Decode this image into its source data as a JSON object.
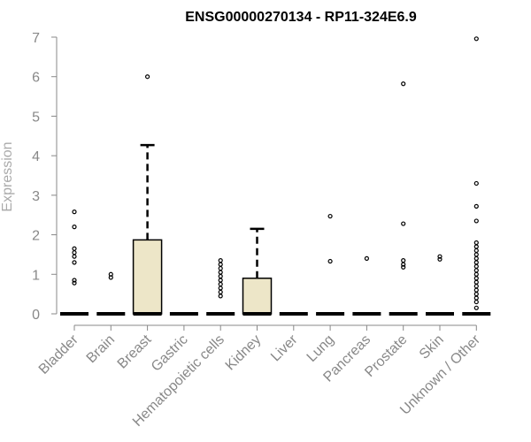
{
  "chart_data": {
    "type": "box",
    "title": "ENSG00000270134 - RP11-324E6.9",
    "xlabel": "",
    "ylabel": "Expression",
    "ylim": [
      0,
      7
    ],
    "yticks": [
      0,
      1,
      2,
      3,
      4,
      5,
      6,
      7
    ],
    "grid": false,
    "colors": {
      "box_fill": "#ede6c8",
      "stroke": "#000000",
      "axis": "#888888",
      "tick_text": "#888888"
    },
    "categories": [
      "Bladder",
      "Brain",
      "Breast",
      "Gastric",
      "Hematopoietic cells",
      "Kidney",
      "Liver",
      "Lung",
      "Pancreas",
      "Prostate",
      "Skin",
      "Unknown / Other"
    ],
    "boxes": [
      {
        "category": "Bladder",
        "q1": 0,
        "median": 0,
        "q3": 0,
        "whisker_low": 0,
        "whisker_high": 0,
        "outliers": [
          0.78,
          0.85,
          1.3,
          1.45,
          1.55,
          1.65,
          2.2,
          2.58
        ]
      },
      {
        "category": "Brain",
        "q1": 0,
        "median": 0,
        "q3": 0,
        "whisker_low": 0,
        "whisker_high": 0,
        "outliers": [
          0.92,
          1.0
        ]
      },
      {
        "category": "Breast",
        "q1": 0,
        "median": 0,
        "q3": 1.87,
        "whisker_low": 0,
        "whisker_high": 4.27,
        "outliers": [
          6.0
        ]
      },
      {
        "category": "Gastric",
        "q1": 0,
        "median": 0,
        "q3": 0,
        "whisker_low": 0,
        "whisker_high": 0,
        "outliers": []
      },
      {
        "category": "Hematopoietic cells",
        "q1": 0,
        "median": 0,
        "q3": 0,
        "whisker_low": 0,
        "whisker_high": 0,
        "outliers": [
          0.45,
          0.55,
          0.65,
          0.75,
          0.85,
          0.95,
          1.05,
          1.15,
          1.25,
          1.35
        ]
      },
      {
        "category": "Kidney",
        "q1": 0,
        "median": 0,
        "q3": 0.9,
        "whisker_low": 0,
        "whisker_high": 2.15,
        "outliers": []
      },
      {
        "category": "Liver",
        "q1": 0,
        "median": 0,
        "q3": 0,
        "whisker_low": 0,
        "whisker_high": 0,
        "outliers": []
      },
      {
        "category": "Lung",
        "q1": 0,
        "median": 0,
        "q3": 0,
        "whisker_low": 0,
        "whisker_high": 0,
        "outliers": [
          1.33,
          2.47
        ]
      },
      {
        "category": "Pancreas",
        "q1": 0,
        "median": 0,
        "q3": 0,
        "whisker_low": 0,
        "whisker_high": 0,
        "outliers": [
          1.4
        ]
      },
      {
        "category": "Prostate",
        "q1": 0,
        "median": 0,
        "q3": 0,
        "whisker_low": 0,
        "whisker_high": 0,
        "outliers": [
          1.18,
          1.25,
          1.35,
          2.28,
          5.82
        ]
      },
      {
        "category": "Skin",
        "q1": 0,
        "median": 0,
        "q3": 0,
        "whisker_low": 0,
        "whisker_high": 0,
        "outliers": [
          1.38,
          1.45
        ]
      },
      {
        "category": "Unknown / Other",
        "q1": 0,
        "median": 0,
        "q3": 0,
        "whisker_low": 0,
        "whisker_high": 0,
        "outliers": [
          0.15,
          0.3,
          0.4,
          0.5,
          0.6,
          0.7,
          0.8,
          0.9,
          1.0,
          1.1,
          1.2,
          1.3,
          1.4,
          1.5,
          1.6,
          1.7,
          1.8,
          2.35,
          2.72,
          3.3,
          6.96
        ]
      }
    ]
  }
}
